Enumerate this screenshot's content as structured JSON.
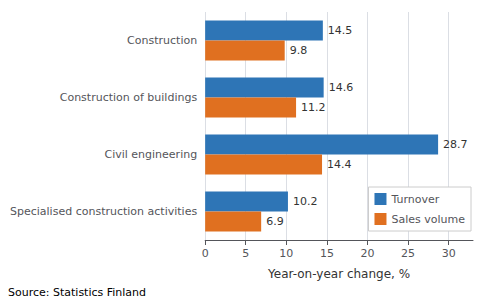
{
  "chart_data": {
    "type": "bar",
    "orientation": "horizontal",
    "categories": [
      "Construction",
      "Construction of buildings",
      "Civil engineering",
      "Specialised construction activities"
    ],
    "series": [
      {
        "name": "Turnover",
        "color": "#2E75B6",
        "values": [
          14.5,
          14.6,
          28.7,
          10.2
        ]
      },
      {
        "name": "Sales volume",
        "color": "#E07020",
        "values": [
          9.8,
          11.2,
          14.4,
          6.9
        ]
      }
    ],
    "xlabel": "Year-on-year change, %",
    "xlim": [
      0,
      33
    ],
    "xticks": [
      0,
      5,
      10,
      15,
      20,
      25,
      30
    ],
    "grid": true,
    "legend": "lower right",
    "data_labels": true,
    "annotations": [
      "Source: Statistics Finland"
    ]
  }
}
